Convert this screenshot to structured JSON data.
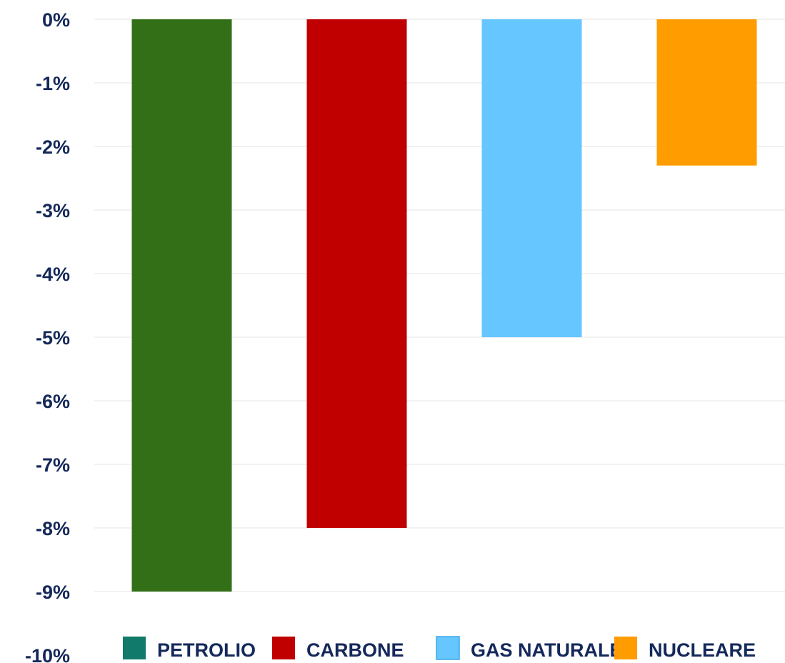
{
  "chart_data": {
    "type": "bar",
    "categories": [
      "PETROLIO",
      "CARBONE",
      "GAS NATURALE",
      "NUCLEARE"
    ],
    "values": [
      -9.0,
      -8.0,
      -5.0,
      -2.3
    ],
    "colors": [
      "#336f17",
      "#c00000",
      "#66c6ff",
      "#ff9c00"
    ],
    "legend": [
      {
        "label": "PETROLIO",
        "color": "#127a6a"
      },
      {
        "label": "CARBONE",
        "color": "#c00000"
      },
      {
        "label": "GAS NATURALE",
        "color": "#66c6ff"
      },
      {
        "label": "NUCLEARE",
        "color": "#ff9c00"
      }
    ],
    "y_ticks": [
      "0%",
      "-1%",
      "-2%",
      "-3%",
      "-4%",
      "-5%",
      "-6%",
      "-7%",
      "-8%",
      "-9%",
      "-10%"
    ],
    "ylim": [
      -10,
      0
    ],
    "grid": true,
    "legend_position": "bottom",
    "title": "",
    "xlabel": "",
    "ylabel": ""
  }
}
